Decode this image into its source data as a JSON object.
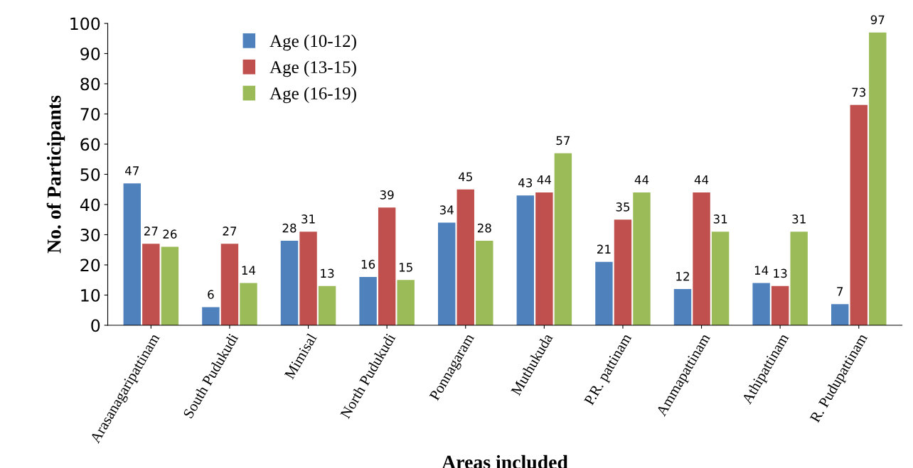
{
  "chart_data": {
    "type": "bar",
    "xlabel": "Areas included",
    "ylabel": "No. of Participants",
    "categories": [
      "Arasanagaripattinam",
      "South Pudukudi",
      "Mimisal",
      "North Pudukudi",
      "Ponnagaram",
      "Muthukuda",
      "P.R. pattinam",
      "Ammapattinam",
      "Athipattinam",
      "R. Pudupattinam"
    ],
    "series": [
      {
        "name": "Age (10-12)",
        "color": "#4f81bd",
        "values": [
          47,
          6,
          28,
          16,
          34,
          43,
          21,
          12,
          14,
          7
        ]
      },
      {
        "name": "Age (13-15)",
        "color": "#c0504d",
        "values": [
          27,
          27,
          31,
          39,
          45,
          44,
          35,
          44,
          13,
          73
        ]
      },
      {
        "name": "Age (16-19)",
        "color": "#9bbb59",
        "values": [
          26,
          14,
          13,
          15,
          28,
          57,
          44,
          31,
          31,
          97
        ]
      }
    ],
    "ylim": [
      0,
      100
    ],
    "yticks": [
      0,
      10,
      20,
      30,
      40,
      50,
      60,
      70,
      80,
      90,
      100
    ],
    "data_labels": true,
    "grid": false,
    "legend": "top left"
  }
}
